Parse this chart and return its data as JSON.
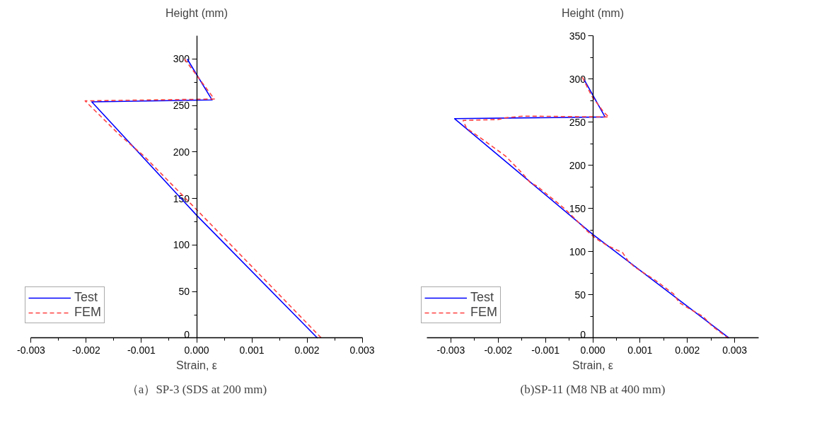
{
  "chart_data": [
    {
      "type": "line",
      "ylabel": "Height (mm)",
      "xlabel": "Strain, ε",
      "annotations": [
        "（a）SP-3 (SDS at 200 mm)"
      ],
      "xlim": [
        -0.003,
        0.003
      ],
      "ylim": [
        0,
        325
      ],
      "xticks": [
        {
          "value": -0.003,
          "label": "-0.003"
        },
        {
          "value": -0.002,
          "label": "-0.002"
        },
        {
          "value": -0.001,
          "label": "-0.001"
        },
        {
          "value": 0,
          "label": "0.000"
        },
        {
          "value": 0.001,
          "label": "0.001"
        },
        {
          "value": 0.002,
          "label": "0.002"
        },
        {
          "value": 0.003,
          "label": "0.003"
        }
      ],
      "yticks": [
        0,
        50,
        100,
        150,
        200,
        250,
        300
      ],
      "grid": false,
      "legend": "bottom left",
      "marker": "none",
      "series": [
        {
          "name": "Test",
          "color": "#0000ff",
          "line_style": "solid",
          "x": [
            -0.00017,
            0.00028,
            -0.0019,
            0,
            0.00219
          ],
          "values": [
            300,
            256,
            254,
            132,
            0
          ]
        },
        {
          "name": "FEM",
          "color": "#ff4040",
          "line_style": "dashed",
          "x": [
            -0.00022,
            0.00032,
            -0.00202,
            -0.00139,
            -0.00096,
            0,
            0.00226
          ],
          "values": [
            300,
            257,
            255,
            218,
            196,
            138,
            0
          ]
        }
      ]
    },
    {
      "type": "line",
      "ylabel": "Height (mm)",
      "xlabel": "Strain, ε",
      "annotations": [
        "(b)SP-11 (M8 NB at 400 mm)"
      ],
      "xlim": [
        -0.0035,
        0.0035
      ],
      "ylim": [
        0,
        350
      ],
      "xticks": [
        {
          "value": -0.003,
          "label": "-0.003"
        },
        {
          "value": -0.002,
          "label": "-0.002"
        },
        {
          "value": -0.001,
          "label": "-0.001"
        },
        {
          "value": 0,
          "label": "0.000"
        },
        {
          "value": 0.001,
          "label": "0.001"
        },
        {
          "value": 0.002,
          "label": "0.002"
        },
        {
          "value": 0.003,
          "label": "0.003"
        }
      ],
      "yticks": [
        0,
        50,
        100,
        150,
        200,
        250,
        300,
        350
      ],
      "grid": false,
      "legend": "bottom left",
      "marker": "none",
      "series": [
        {
          "name": "Test",
          "color": "#0000ff",
          "line_style": "solid",
          "x": [
            -0.00018,
            0.00026,
            -0.00292,
            0,
            0.00288
          ],
          "values": [
            299,
            256,
            254,
            120,
            0
          ]
        },
        {
          "name": "FEM",
          "color": "#ff4040",
          "line_style": "dashed",
          "x": [
            -0.00022,
            -2e-05,
            0.00024,
            0.00034,
            -0.00147,
            -0.00185,
            -0.002,
            -0.00274,
            -0.00267,
            -0.00238,
            -0.00185,
            -0.00151,
            -0.00132,
            -0.00118,
            -0.0006,
            -0.00041,
            -0.00012,
            7e-05,
            0.00031,
            0.00063,
            0.00075,
            0.00089,
            0.00132,
            0.00171,
            0.00183,
            0.00204,
            0.00233,
            0.00252,
            0.00286
          ],
          "values": [
            302,
            280,
            261,
            256,
            257,
            255,
            253,
            252,
            243,
            232,
            211,
            192,
            180,
            176,
            150,
            140,
            124,
            115,
            107,
            99,
            89,
            82,
            67,
            51,
            41,
            34,
            25,
            14,
            0
          ]
        }
      ]
    }
  ]
}
